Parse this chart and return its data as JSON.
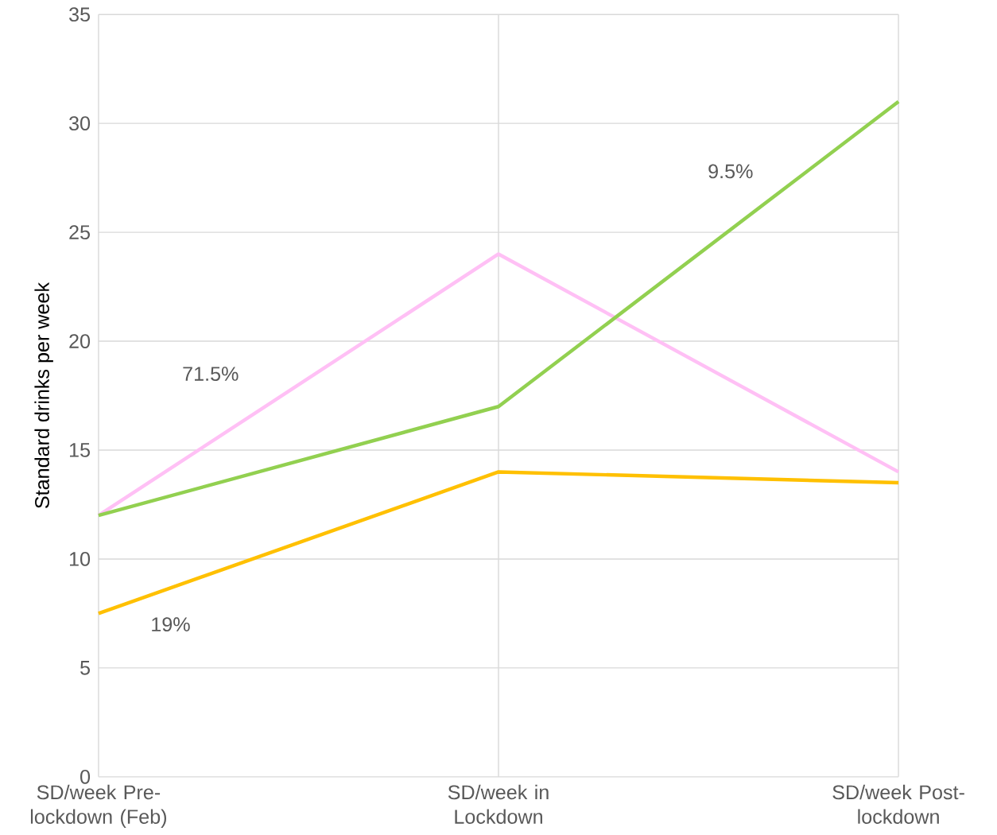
{
  "chart_data": {
    "type": "line",
    "ylabel": "Standard drinks per week",
    "categories": [
      "SD/week Pre-lockdown (Feb)",
      "SD/week in Lockdown",
      "SD/week Post-lockdown"
    ],
    "series": [
      {
        "color": "#ffc0f5",
        "values": [
          12,
          24,
          14
        ]
      },
      {
        "color": "#92d050",
        "values": [
          12,
          17,
          31
        ]
      },
      {
        "color": "#ffc000",
        "values": [
          7.5,
          14,
          13.5
        ]
      }
    ],
    "annotations": [
      "71.5%",
      "19%",
      "9.5%"
    ],
    "ylim": [
      0,
      35
    ],
    "yticks": [
      0,
      5,
      10,
      15,
      20,
      25,
      30,
      35
    ],
    "grid": true,
    "marker": "none",
    "line_style": "solid"
  }
}
